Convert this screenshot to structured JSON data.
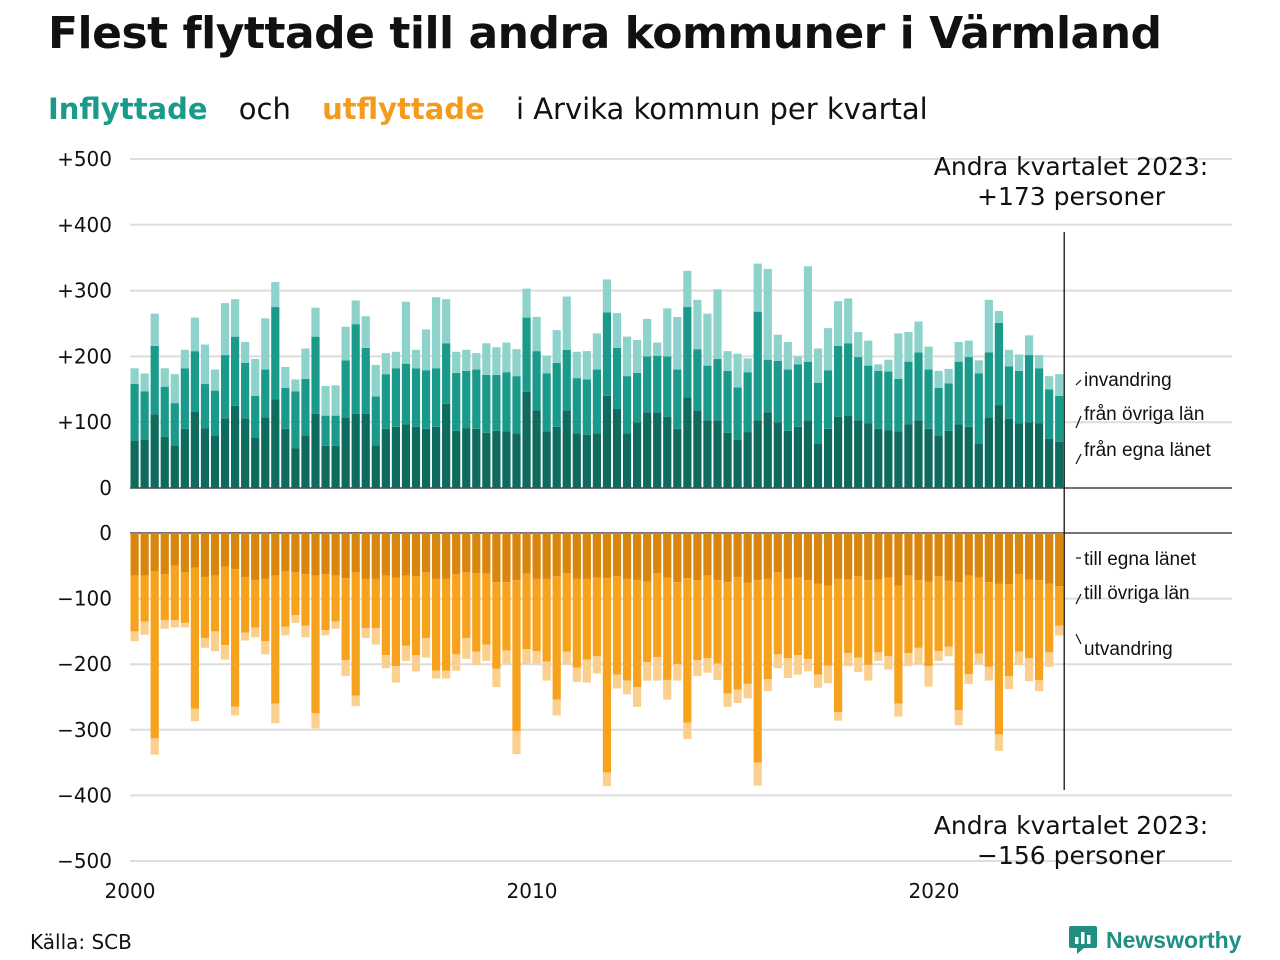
{
  "title": "Flest flyttade till andra kommuner i Värmland",
  "subtitle": {
    "part1": "Inflyttade",
    "part2": "och",
    "part3": "utflyttade",
    "part4": "i Arvika kommun per kvartal"
  },
  "source": "Källa: SCB",
  "brand": "Newsworthy",
  "annotations": {
    "top_line1": "Andra kvartalet 2023:",
    "top_line2": "+173 personer",
    "bottom_line1": "Andra kvartalet 2023:",
    "bottom_line2": "−156 personer"
  },
  "colors": {
    "in_own": "#0f6b5e",
    "in_other": "#1a9a8a",
    "in_immig": "#8ed3cb",
    "out_own": "#d8860e",
    "out_other": "#f7a21c",
    "out_emig": "#fbd08f",
    "brand": "#1f8f82"
  },
  "chart_data": {
    "type": "bar",
    "stacked": true,
    "x_start": "2000 Q1",
    "x_end": "2023 Q2",
    "x_ticks": [
      "2000",
      "2010",
      "2020"
    ],
    "y_ticks_top": [
      "+500",
      "+400",
      "+300",
      "+200",
      "+100",
      "0"
    ],
    "y_ticks_bottom": [
      "0",
      "−100",
      "−200",
      "−300",
      "−400",
      "−500"
    ],
    "ylim_top": [
      0,
      500
    ],
    "ylim_bottom": [
      -500,
      0
    ],
    "grid": true,
    "series_in": [
      {
        "name": "från egna länet",
        "values": [
          72,
          73,
          112,
          78,
          65,
          90,
          116,
          91,
          80,
          106,
          125,
          106,
          77,
          107,
          135,
          90,
          60,
          80,
          113,
          64,
          64,
          107,
          113,
          113,
          65,
          90,
          93,
          97,
          93,
          90,
          93,
          128,
          87,
          91,
          90,
          84,
          87,
          86,
          83,
          146,
          118,
          86,
          93,
          118,
          83,
          81,
          83,
          140,
          120,
          83,
          100,
          115,
          115,
          108,
          90,
          138,
          118,
          103,
          103,
          84,
          73,
          85,
          103,
          115,
          100,
          87,
          93,
          103,
          68,
          90,
          108,
          110,
          103,
          98,
          90,
          88,
          86,
          97,
          103,
          90,
          80,
          87,
          97,
          93,
          68,
          107,
          126,
          105,
          98,
          100,
          98,
          75,
          70
        ]
      },
      {
        "name": "från övriga län",
        "values": [
          86,
          74,
          104,
          76,
          64,
          92,
          92,
          67,
          68,
          96,
          105,
          84,
          63,
          73,
          140,
          62,
          87,
          86,
          117,
          46,
          46,
          87,
          136,
          100,
          74,
          83,
          89,
          92,
          89,
          89,
          89,
          92,
          88,
          87,
          90,
          88,
          85,
          90,
          87,
          113,
          90,
          88,
          97,
          92,
          84,
          84,
          97,
          127,
          93,
          87,
          75,
          85,
          86,
          92,
          90,
          137,
          93,
          83,
          93,
          94,
          80,
          91,
          165,
          80,
          93,
          93,
          95,
          89,
          92,
          89,
          108,
          110,
          96,
          88,
          88,
          89,
          80,
          95,
          103,
          90,
          72,
          72,
          95,
          106,
          106,
          99,
          125,
          80,
          80,
          102,
          84,
          75,
          70
        ]
      },
      {
        "name": "invandring",
        "values": [
          24,
          27,
          49,
          28,
          44,
          28,
          51,
          60,
          32,
          79,
          57,
          32,
          56,
          78,
          38,
          32,
          18,
          46,
          44,
          45,
          46,
          51,
          36,
          48,
          48,
          32,
          25,
          94,
          28,
          62,
          108,
          67,
          32,
          32,
          25,
          48,
          42,
          45,
          41,
          44,
          52,
          27,
          50,
          81,
          40,
          43,
          55,
          50,
          53,
          60,
          50,
          57,
          20,
          73,
          80,
          55,
          75,
          79,
          106,
          30,
          51,
          21,
          73,
          138,
          40,
          42,
          12,
          145,
          52,
          64,
          68,
          68,
          38,
          38,
          10,
          18,
          69,
          45,
          47,
          35,
          26,
          22,
          30,
          25,
          20,
          80,
          18,
          25,
          25,
          30,
          20,
          20,
          33
        ]
      }
    ],
    "series_out": [
      {
        "name": "till egna länet",
        "values": [
          -65,
          -65,
          -58,
          -63,
          -50,
          -60,
          -53,
          -67,
          -65,
          -51,
          -55,
          -67,
          -72,
          -70,
          -65,
          -58,
          -60,
          -63,
          -65,
          -63,
          -65,
          -69,
          -60,
          -70,
          -70,
          -65,
          -68,
          -65,
          -66,
          -60,
          -70,
          -70,
          -63,
          -60,
          -61,
          -62,
          -75,
          -75,
          -72,
          -62,
          -70,
          -70,
          -66,
          -61,
          -70,
          -70,
          -68,
          -69,
          -66,
          -70,
          -72,
          -74,
          -61,
          -68,
          -75,
          -69,
          -72,
          -65,
          -72,
          -75,
          -67,
          -76,
          -72,
          -70,
          -60,
          -70,
          -68,
          -72,
          -77,
          -80,
          -70,
          -71,
          -66,
          -72,
          -71,
          -68,
          -80,
          -65,
          -72,
          -74,
          -66,
          -73,
          -75,
          -65,
          -68,
          -75,
          -77,
          -78,
          -63,
          -71,
          -72,
          -77,
          -81
        ]
      },
      {
        "name": "till övriga län",
        "values": [
          -85,
          -70,
          -255,
          -70,
          -83,
          -77,
          -215,
          -93,
          -85,
          -120,
          -210,
          -85,
          -72,
          -95,
          -195,
          -85,
          -65,
          -78,
          -210,
          -85,
          -70,
          -125,
          -188,
          -75,
          -75,
          -121,
          -135,
          -107,
          -120,
          -100,
          -140,
          -140,
          -122,
          -100,
          -120,
          -108,
          -132,
          -104,
          -230,
          -115,
          -110,
          -126,
          -188,
          -120,
          -135,
          -123,
          -120,
          -296,
          -150,
          -155,
          -163,
          -123,
          -128,
          -156,
          -125,
          -220,
          -122,
          -126,
          -127,
          -170,
          -172,
          -154,
          -278,
          -153,
          -125,
          -121,
          -118,
          -120,
          -139,
          -122,
          -203,
          -112,
          -124,
          -129,
          -111,
          -120,
          -180,
          -118,
          -103,
          -129,
          -114,
          -100,
          -195,
          -150,
          -116,
          -129,
          -230,
          -140,
          -118,
          -120,
          -152,
          -105,
          -60
        ]
      },
      {
        "name": "utvandring",
        "values": [
          -15,
          -20,
          -25,
          -13,
          -11,
          -7,
          -19,
          -15,
          -30,
          -22,
          -13,
          -12,
          -15,
          -20,
          -30,
          -13,
          -12,
          -18,
          -23,
          -8,
          -11,
          -24,
          -16,
          -15,
          -25,
          -20,
          -25,
          -23,
          -25,
          -30,
          -12,
          -12,
          -25,
          -32,
          -20,
          -25,
          -28,
          -20,
          -35,
          -23,
          -19,
          -29,
          -24,
          -19,
          -22,
          -35,
          -26,
          -21,
          -21,
          -21,
          -30,
          -28,
          -36,
          -30,
          -25,
          -25,
          -24,
          -22,
          -25,
          -20,
          -20,
          -22,
          -35,
          -18,
          -21,
          -30,
          -30,
          -19,
          -20,
          -27,
          -13,
          -20,
          -22,
          -24,
          -13,
          -20,
          -20,
          -20,
          -25,
          -31,
          -15,
          -15,
          -23,
          -15,
          -16,
          -21,
          -25,
          -20,
          -20,
          -35,
          -17,
          -22,
          -15
        ]
      }
    ],
    "labels_in": [
      "invandring",
      "från övriga län",
      "från egna länet"
    ],
    "labels_out": [
      "till egna länet",
      "till övriga län",
      "utvandring"
    ]
  }
}
